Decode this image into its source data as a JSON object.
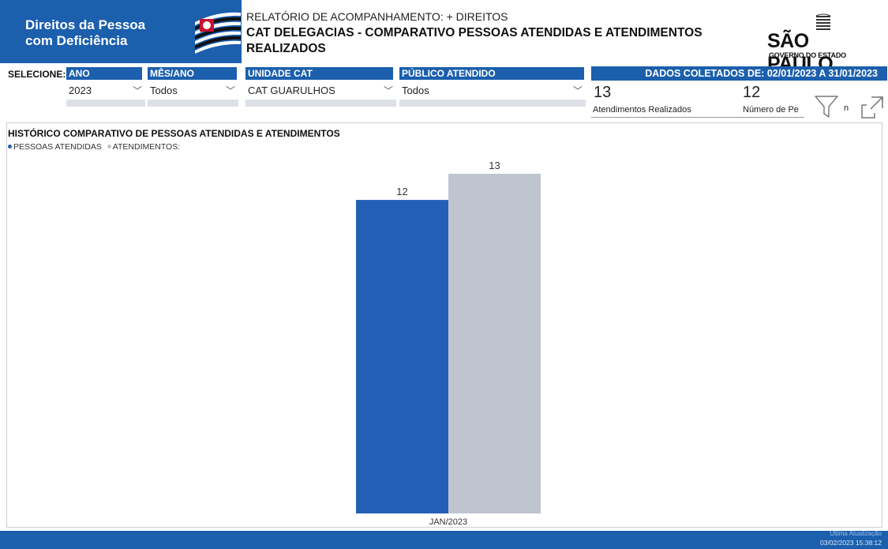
{
  "header": {
    "brand_line1": "Direitos da Pessoa",
    "brand_line2": "com Deficiência",
    "subtitle": "RELATÓRIO DE ACOMPANHAMENTO: + DIREITOS",
    "title": "CAT DELEGACIAS - COMPARATIVO PESSOAS ATENDIDAS E ATENDIMENTOS REALIZADOS",
    "gov_name": "SÃO PAULO",
    "gov_sub": "GOVERNO DO ESTADO"
  },
  "filters": {
    "label": "SELECIONE:",
    "ano": {
      "header": "ANO",
      "value": "2023"
    },
    "mes": {
      "header": "MÊS/ANO",
      "value": "Todos"
    },
    "unidade": {
      "header": "UNIDADE CAT",
      "value": "CAT GUARULHOS"
    },
    "publico": {
      "header": "PÚBLICO ATENDIDO",
      "value": "Todos"
    }
  },
  "dados": {
    "label": "DADOS COLETADOS DE: 02/01/2023 A 31/01/2023",
    "kpi1": {
      "value": "13",
      "label": "Atendimentos Realizados"
    },
    "kpi2": {
      "value": "12",
      "label": "Número de Pe"
    },
    "clipped_text": "n"
  },
  "chart_section": {
    "title": "HISTÓRICO COMPARATIVO DE PESSOAS ATENDIDAS E ATENDIMENTOS",
    "legend_pessoas": "PESSOAS ATENDIDAS",
    "legend_atend": "ATENDIMENTOS:"
  },
  "chart_data": {
    "type": "bar",
    "title": "HISTÓRICO COMPARATIVO DE PESSOAS ATENDIDAS E ATENDIMENTOS",
    "categories": [
      "JAN/2023"
    ],
    "series": [
      {
        "name": "PESSOAS ATENDIDAS",
        "values": [
          12
        ],
        "color": "#2360b5"
      },
      {
        "name": "ATENDIMENTOS:",
        "values": [
          13
        ],
        "color": "#bfc5cf"
      }
    ],
    "ylim": [
      0,
      13
    ],
    "grid": false,
    "legend": "top-left"
  },
  "footer": {
    "update_label": "Última Atualização",
    "update_time": "03/02/2023 15:38:12"
  },
  "colors": {
    "brand": "#1b5fad",
    "bar_primary": "#2360b5",
    "bar_secondary": "#bfc5cf"
  },
  "icons": [
    "sp-flag-icon",
    "filter-icon",
    "expand-icon",
    "chevron-down-icon"
  ]
}
